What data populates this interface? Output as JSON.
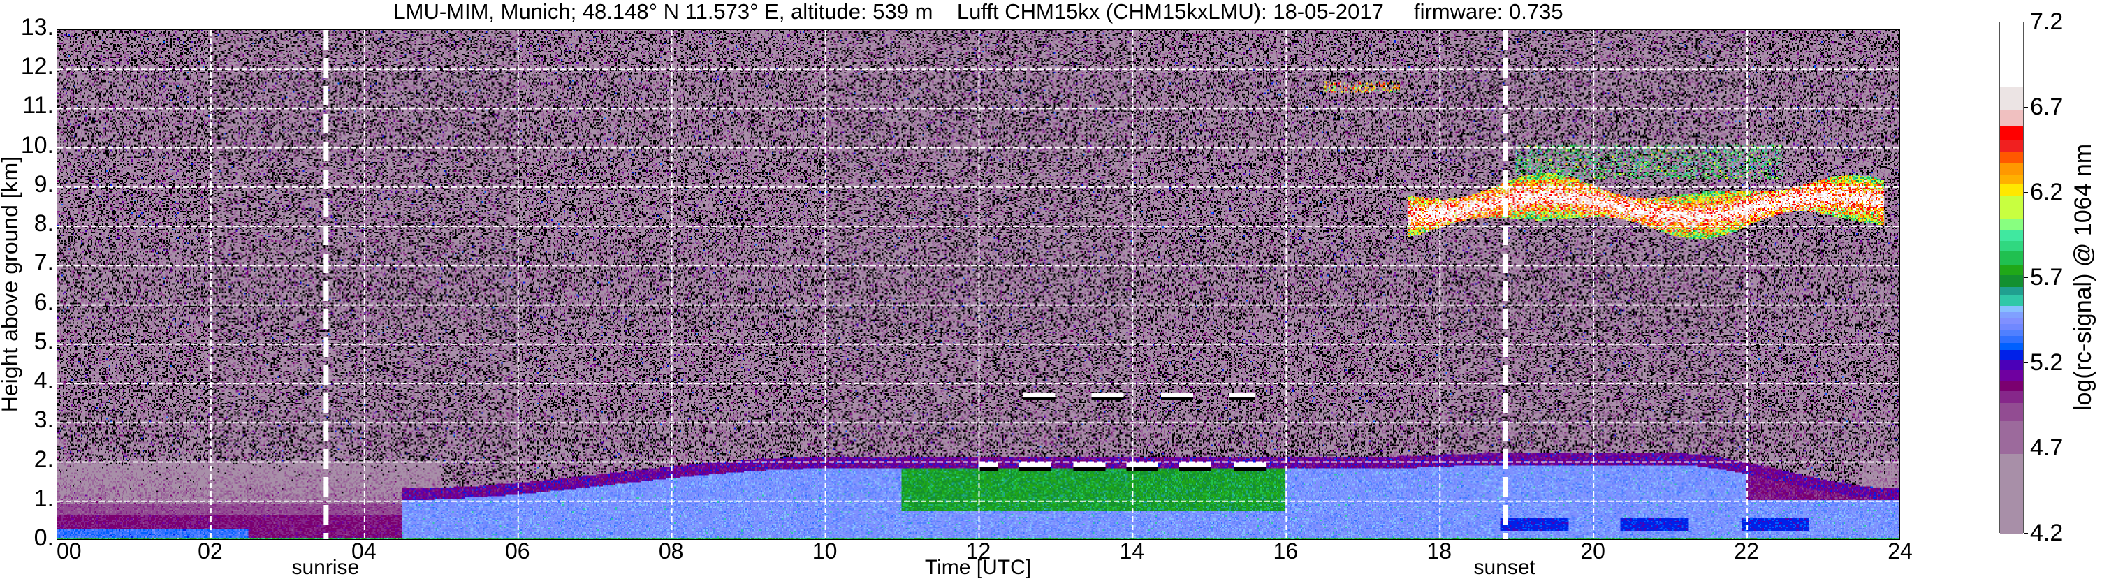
{
  "chart_data": {
    "type": "heatmap",
    "title": "LMU-MIM, Munich; 48.148° N 11.573° E, altitude: 539 m    Lufft CHM15kx (CHM15kxLMU): 18-05-2017     firmware: 0.735",
    "xlabel": "Time [UTC]",
    "ylabel": "Height above ground [km]",
    "xlim": [
      0,
      24
    ],
    "ylim": [
      0,
      13
    ],
    "xticks": [
      "00",
      "02",
      "04",
      "06",
      "08",
      "10",
      "12",
      "14",
      "16",
      "18",
      "20",
      "22",
      "24"
    ],
    "yticks": [
      "0.",
      "1.",
      "2.",
      "3.",
      "4.",
      "5.",
      "6.",
      "7.",
      "8.",
      "9.",
      "10.",
      "11.",
      "12.",
      "13."
    ],
    "grid": true,
    "vertical_markers": [
      {
        "label": "sunrise",
        "time": 3.5
      },
      {
        "label": "sunset",
        "time": 18.85
      }
    ],
    "colorbar": {
      "label": "log(rc-signal) @ 1064 nm",
      "range": [
        4.2,
        7.2
      ],
      "ticks": [
        "4.2",
        "4.7",
        "5.2",
        "5.7",
        "6.2",
        "6.7",
        "7.2"
      ],
      "under_color": "#000000",
      "levels": [
        [
          4.2,
          "#a88fa8"
        ],
        [
          4.67,
          "#9c6a9c"
        ],
        [
          4.86,
          "#924c92"
        ],
        [
          4.97,
          "#86278a"
        ],
        [
          5.04,
          "#7b0070"
        ],
        [
          5.1,
          "#6f00a0"
        ],
        [
          5.16,
          "#4b00b8"
        ],
        [
          5.22,
          "#0020e8"
        ],
        [
          5.28,
          "#0060ff"
        ],
        [
          5.32,
          "#3070ff"
        ],
        [
          5.36,
          "#5080ff"
        ],
        [
          5.4,
          "#7088ff"
        ],
        [
          5.43,
          "#8090ff"
        ],
        [
          5.47,
          "#80a0ff"
        ],
        [
          5.5,
          "#88c0ff"
        ],
        [
          5.54,
          "#30c8a8"
        ],
        [
          5.6,
          "#20a090"
        ],
        [
          5.65,
          "#139030"
        ],
        [
          5.72,
          "#20a818"
        ],
        [
          5.78,
          "#20c050"
        ],
        [
          5.86,
          "#30d880"
        ],
        [
          5.92,
          "#40e8a0"
        ],
        [
          5.98,
          "#88ff80"
        ],
        [
          6.05,
          "#c8ff40"
        ],
        [
          6.18,
          "#ffe800"
        ],
        [
          6.25,
          "#ffb000"
        ],
        [
          6.31,
          "#ff9800"
        ],
        [
          6.38,
          "#ff5800"
        ],
        [
          6.44,
          "#f02020"
        ],
        [
          6.51,
          "#ff0000"
        ],
        [
          6.59,
          "#f0c0c0"
        ],
        [
          6.69,
          "#ece4e4"
        ],
        [
          6.82,
          "#ffffff"
        ]
      ]
    },
    "features": [
      {
        "kind": "nocturnal boundary layer",
        "time": [
          0,
          5
        ],
        "height": [
          0,
          0.9
        ],
        "value": 5.05
      },
      {
        "kind": "residual layer",
        "time": [
          0,
          5
        ],
        "height": [
          0.9,
          2.0
        ],
        "value": 4.7
      },
      {
        "kind": "mixing layer",
        "time": [
          5,
          22
        ],
        "height": [
          0,
          1.8
        ],
        "value": 5.45
      },
      {
        "kind": "aerosol",
        "time": [
          11,
          16
        ],
        "height": [
          0.7,
          1.7
        ],
        "value": 5.72
      },
      {
        "kind": "cloud",
        "time": [
          12,
          15.8
        ],
        "height": [
          1.75,
          1.95
        ],
        "value": 7.2
      },
      {
        "kind": "cloud",
        "time": [
          12.5,
          15.6
        ],
        "height": [
          3.55,
          3.7
        ],
        "value": 7.2
      },
      {
        "kind": "cirrus",
        "time": [
          17.6,
          23.8
        ],
        "height": [
          7.9,
          9.2
        ],
        "value": 6.5
      },
      {
        "kind": "cirrus",
        "time": [
          19,
          22.5
        ],
        "height": [
          9.2,
          10.1
        ],
        "value": 5.8
      }
    ]
  }
}
